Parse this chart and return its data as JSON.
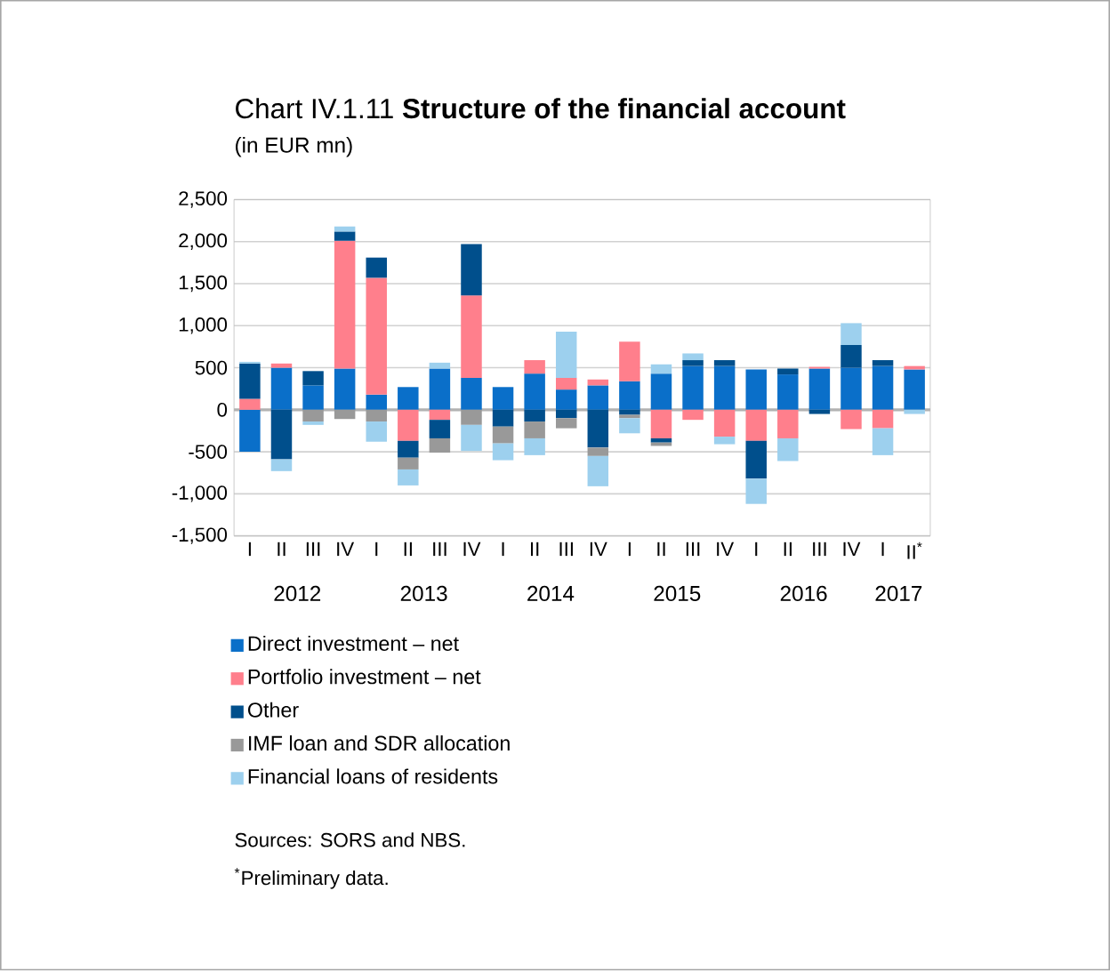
{
  "chart_data": {
    "type": "bar",
    "stacked": true,
    "title": "Chart IV.1.11 **Structure of the financial account**",
    "subtitle": "(in EUR mn)",
    "categories": [
      "I",
      "II",
      "III",
      "IV",
      "I",
      "II",
      "III",
      "IV",
      "I",
      "II",
      "III",
      "IV",
      "I",
      "II",
      "III",
      "IV",
      "I",
      "II",
      "III",
      "IV",
      "I",
      "II$^{*}$"
    ],
    "series": [
      {
        "name": "Direct investment – net",
        "color": "#0a6fc9",
        "values": [
          -500,
          500,
          290,
          490,
          180,
          270,
          490,
          380,
          270,
          430,
          240,
          290,
          340,
          430,
          520,
          520,
          480,
          420,
          490,
          500,
          520,
          480
        ]
      },
      {
        "name": "Portfolio investment – net",
        "color": "#ff7f8c",
        "values": [
          130,
          50,
          null,
          1520,
          1390,
          -370,
          -120,
          980,
          null,
          160,
          140,
          70,
          470,
          -340,
          -120,
          -320,
          -370,
          -340,
          20,
          -230,
          -220,
          40
        ]
      },
      {
        "name": "Other",
        "color": "#004f8c",
        "values": [
          420,
          -590,
          170,
          110,
          240,
          -200,
          -220,
          610,
          -200,
          -140,
          -100,
          -450,
          -60,
          -50,
          70,
          70,
          -450,
          70,
          -50,
          270,
          70,
          null
        ]
      },
      {
        "name": "IMF loan and SDR allocation",
        "color": "#999999",
        "values": [
          null,
          null,
          -140,
          -110,
          -140,
          -140,
          -170,
          -180,
          -200,
          -200,
          -120,
          -100,
          -40,
          -40,
          null,
          null,
          null,
          null,
          null,
          null,
          null,
          null
        ]
      },
      {
        "name": "Financial loans of residents",
        "color": "#9dd0ee",
        "values": [
          20,
          -140,
          -40,
          60,
          -240,
          -190,
          70,
          -310,
          -200,
          -200,
          550,
          -360,
          -180,
          110,
          80,
          -90,
          -300,
          -270,
          null,
          260,
          -320,
          -50
        ]
      }
    ],
    "ylim": [
      -1500,
      2500
    ],
    "yticks": [
      {
        "value": -1500,
        "label": "-1,500"
      },
      {
        "value": -1000,
        "label": "-1,000"
      },
      -500,
      0,
      500,
      {
        "value": 1000,
        "label": "1,000"
      },
      {
        "value": 1500,
        "label": "1,500"
      },
      {
        "value": 2000,
        "label": "2,000"
      },
      {
        "value": 2500,
        "label": "2,500"
      }
    ],
    "grid": "y",
    "legend": "bottom",
    "annotations": [
      "2012",
      "2013",
      "2014",
      "2015",
      "2016",
      "2017",
      "Sources: SORS and NBS.",
      "$^{*}$Preliminary data."
    ]
  }
}
